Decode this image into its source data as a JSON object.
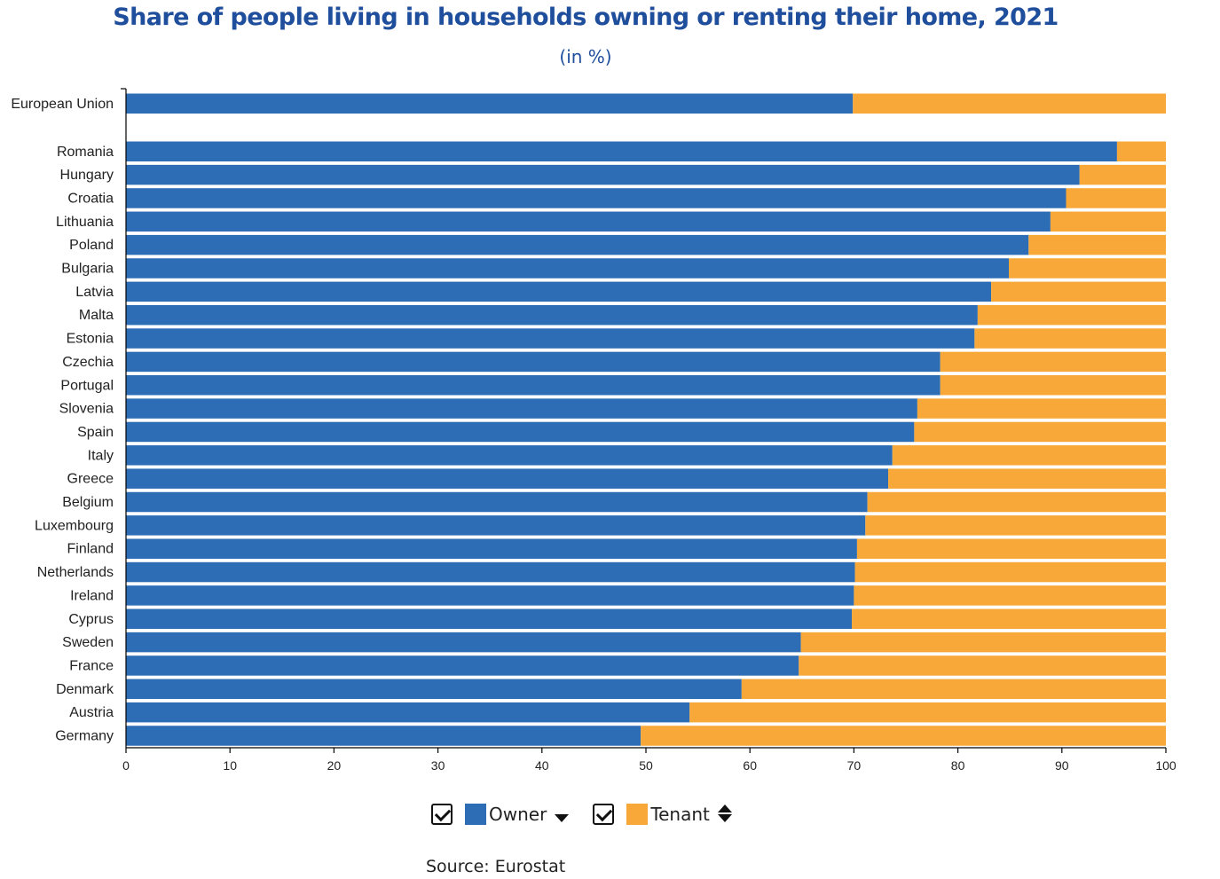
{
  "chart_data": {
    "type": "bar",
    "orientation": "horizontal",
    "stacked": true,
    "title": "Share of people living in households owning or renting their home, 2021",
    "subtitle": "(in %)",
    "categories": [
      "European Union",
      "Romania",
      "Hungary",
      "Croatia",
      "Lithuania",
      "Poland",
      "Bulgaria",
      "Latvia",
      "Malta",
      "Estonia",
      "Czechia",
      "Portugal",
      "Slovenia",
      "Spain",
      "Italy",
      "Greece",
      "Belgium",
      "Luxembourg",
      "Finland",
      "Netherlands",
      "Ireland",
      "Cyprus",
      "Sweden",
      "France",
      "Denmark",
      "Austria",
      "Germany"
    ],
    "series": [
      {
        "name": "Owner",
        "color": "#2d6db5",
        "values": [
          69.9,
          95.3,
          91.7,
          90.4,
          88.9,
          86.8,
          84.9,
          83.2,
          81.9,
          81.6,
          78.3,
          78.3,
          76.1,
          75.8,
          73.7,
          73.3,
          71.3,
          71.1,
          70.3,
          70.1,
          70.0,
          69.8,
          64.9,
          64.7,
          59.2,
          54.2,
          49.5
        ]
      },
      {
        "name": "Tenant",
        "color": "#f8a838",
        "values": [
          30.1,
          4.7,
          8.3,
          9.6,
          11.1,
          13.2,
          15.1,
          16.8,
          18.1,
          18.4,
          21.7,
          21.7,
          23.9,
          24.2,
          26.3,
          26.7,
          28.7,
          28.9,
          29.7,
          29.9,
          30.0,
          30.2,
          35.1,
          35.3,
          40.8,
          45.8,
          50.5
        ]
      }
    ],
    "xticks": [
      "0",
      "10",
      "20",
      "30",
      "40",
      "50",
      "60",
      "70",
      "80",
      "90",
      "100"
    ],
    "xlim": [
      0,
      100
    ],
    "grid": false,
    "legend_position": "bottom"
  },
  "legend": {
    "owner_label": "Owner",
    "tenant_label": "Tenant"
  },
  "footer": {
    "source": "Source: Eurostat"
  }
}
